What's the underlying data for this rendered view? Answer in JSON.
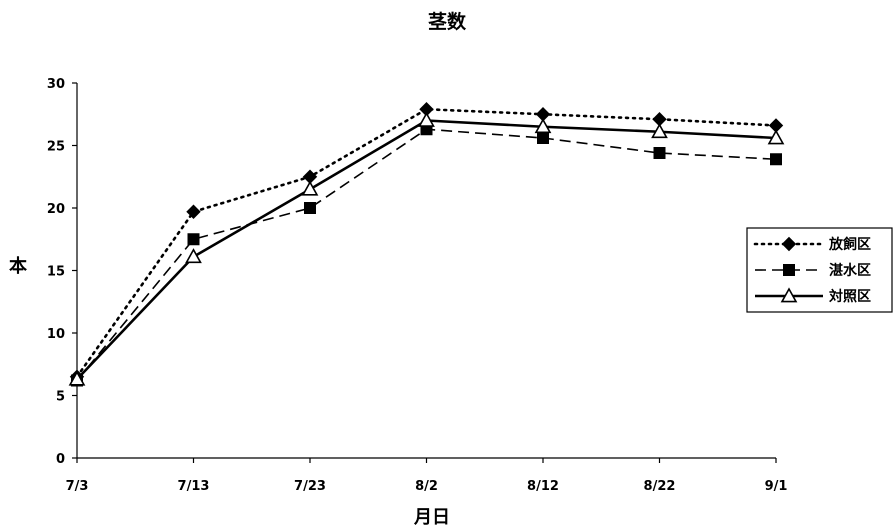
{
  "chart_data": {
    "type": "line",
    "title": "茎数",
    "xlabel": "月日",
    "ylabel": "本",
    "categories": [
      "7/3",
      "7/13",
      "7/23",
      "8/2",
      "8/12",
      "8/22",
      "9/1"
    ],
    "ylim": [
      0,
      30
    ],
    "yticks": [
      0,
      5,
      10,
      15,
      20,
      25,
      30
    ],
    "grid": false,
    "legend_position": "right",
    "series": [
      {
        "name": "放飼区",
        "marker": "diamond",
        "line": "dotted",
        "color": "#000000",
        "values": [
          6.5,
          19.7,
          22.5,
          27.9,
          27.5,
          27.1,
          26.6
        ]
      },
      {
        "name": "湛水区",
        "marker": "square",
        "line": "dashed",
        "color": "#000000",
        "values": [
          6.2,
          17.5,
          20.0,
          26.3,
          25.6,
          24.4,
          23.9
        ]
      },
      {
        "name": "対照区",
        "marker": "triangle",
        "line": "solid",
        "color": "#000000",
        "values": [
          6.3,
          16.1,
          21.5,
          27.0,
          26.5,
          26.1,
          25.6
        ]
      }
    ]
  }
}
